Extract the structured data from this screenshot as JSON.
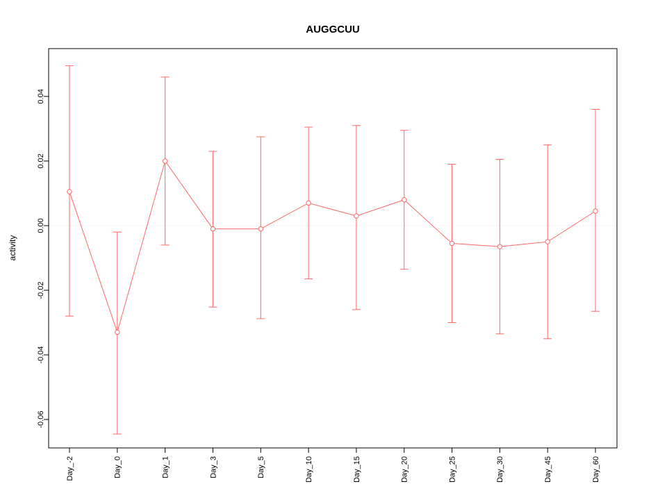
{
  "chart_data": {
    "type": "line",
    "title": "AUGGCUU",
    "xlabel": "",
    "ylabel": "activity",
    "categories": [
      "Day_-2",
      "Day_0",
      "Day_1",
      "Day_3",
      "Day_5",
      "Day_10",
      "Day_15",
      "Day_20",
      "Day_25",
      "Day_30",
      "Day_45",
      "Day_60"
    ],
    "values": [
      0.0105,
      -0.033,
      0.02,
      -0.001,
      -0.001,
      0.007,
      0.003,
      0.008,
      -0.0055,
      -0.0065,
      -0.005,
      0.0045
    ],
    "error_upper": [
      0.0495,
      -0.002,
      0.046,
      0.023,
      0.0275,
      0.0305,
      0.031,
      0.0295,
      0.019,
      0.0205,
      0.025,
      0.036
    ],
    "error_lower": [
      -0.028,
      -0.0645,
      -0.006,
      -0.0252,
      -0.0288,
      -0.0165,
      -0.026,
      -0.0135,
      -0.03,
      -0.0335,
      -0.035,
      -0.0265
    ],
    "yticks": [
      -0.06,
      -0.04,
      -0.02,
      0,
      0.02,
      0.04
    ],
    "ytick_labels": [
      "-0.06",
      "-0.04",
      "-0.02",
      "0.00",
      "0.02",
      "0.04"
    ],
    "ylim": [
      -0.0688,
      0.0548
    ],
    "grid": false,
    "zero_line": true,
    "legend": "none",
    "marker": "open-circle",
    "series_color": "#ff6666",
    "zero_line_color": "#d8d8d8",
    "axis_color": "#000000"
  }
}
